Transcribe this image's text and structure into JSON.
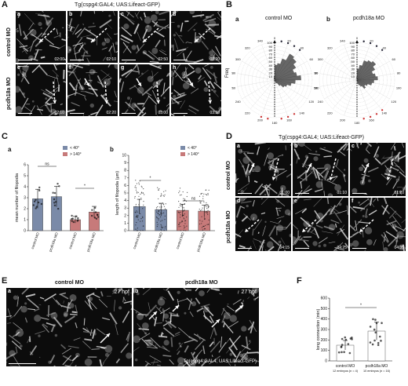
{
  "panelA": {
    "letter": "A",
    "title": "Tg(cspg4:GAL4; UAS:Lifeact-GFP)",
    "row1": "control MO",
    "row2": "pcdh18a MO",
    "tiles": [
      {
        "l": "a",
        "t": "02:00"
      },
      {
        "l": "b",
        "t": "02:10"
      },
      {
        "l": "c",
        "t": "02:50"
      },
      {
        "l": "d",
        "t": "03:20"
      },
      {
        "l": "e",
        "t": "02:10"
      },
      {
        "l": "f",
        "t": "02:20"
      },
      {
        "l": "g",
        "t": "03:00"
      },
      {
        "l": "h",
        "t": "03:30"
      }
    ]
  },
  "panelB": {
    "letter": "B",
    "a_label": "a",
    "a_title": "control MO",
    "b_label": "b",
    "b_title": "pcdh18a MO",
    "ylabel": "Freq",
    "rticks": [
      "100",
      "90",
      "80",
      "70",
      "60",
      "50",
      "40",
      "30",
      "20",
      "10"
    ],
    "angles": [
      "0",
      "20",
      "40",
      "60",
      "80",
      "100",
      "120",
      "140",
      "160",
      "180",
      "200",
      "220",
      "240",
      "260",
      "280",
      "300",
      "320",
      "340"
    ]
  },
  "panelC": {
    "letter": "C",
    "a": "a",
    "b": "b",
    "legend": [
      "< 40°",
      "> 140°"
    ],
    "a_ylabel": "mean number of filopodia",
    "b_ylabel": "length of filopodia (μm)",
    "a_yticks": [
      "0",
      "1",
      "2",
      "3",
      "4",
      "5",
      "6"
    ],
    "b_yticks": [
      "0",
      "1",
      "2",
      "3",
      "4",
      "5",
      "6",
      "7",
      "8",
      "9",
      "10"
    ],
    "xcats": [
      "control MO",
      "pcdh18a MO",
      "control MO",
      "pcdh18a MO"
    ],
    "sig_a": [
      "ns",
      "*"
    ],
    "sig_b": [
      "*",
      "ns"
    ]
  },
  "panelD": {
    "letter": "D",
    "title": "Tg(cspg4:GAL4; UAS:Lifeact-GFP)",
    "row1": "control MO",
    "row2": "pcdh18a MO",
    "tiles": [
      {
        "l": "a",
        "t": "01:00"
      },
      {
        "l": "b",
        "t": "01:10"
      },
      {
        "l": "c",
        "t": "01:20"
      },
      {
        "l": "d",
        "t": "04:15"
      },
      {
        "l": "e",
        "t": "04:25"
      },
      {
        "l": "f",
        "t": "04:35"
      }
    ]
  },
  "panelE": {
    "letter": "E",
    "t1": "control MO",
    "t2": "pcdh18a MO",
    "a": "a",
    "b": "b",
    "hpf1": "27 hpf",
    "hpf2": "27 hpf",
    "caption": "Tg(cspg4:GAL4; UAS:Lifeact-GFP)"
  },
  "panelF": {
    "letter": "F",
    "ylabel": "long connection (min)",
    "yticks": [
      "0",
      "100",
      "200",
      "300",
      "400",
      "500",
      "600"
    ],
    "x1": "control MO",
    "x1sub": "12 embryos (n = 4)",
    "x2": "pcdh18a MO",
    "x2sub": "10 embryos (n = 16)",
    "sig": "*"
  },
  "chart_data": [
    {
      "type": "bar",
      "title": "",
      "ylabel": "mean number of filopodia",
      "ylim": [
        0,
        6
      ],
      "categories": [
        "control MO",
        "pcdh18a MO",
        "control MO",
        "pcdh18a MO"
      ],
      "series": [
        {
          "name": "< 40°",
          "values": [
            2.9,
            3.1,
            null,
            null
          ]
        },
        {
          "name": "> 140°",
          "values": [
            null,
            null,
            1.0,
            1.7
          ]
        }
      ]
    },
    {
      "type": "bar",
      "title": "",
      "ylabel": "length of filopodia (μm)",
      "ylim": [
        0,
        10
      ],
      "categories": [
        "control MO",
        "pcdh18a MO",
        "control MO",
        "pcdh18a MO"
      ],
      "series": [
        {
          "name": "< 40°",
          "values": [
            3.2,
            2.8,
            null,
            null
          ]
        },
        {
          "name": "> 140°",
          "values": [
            null,
            null,
            2.7,
            2.6
          ]
        }
      ]
    },
    {
      "type": "bar",
      "title": "",
      "ylabel": "long connection (min)",
      "ylim": [
        0,
        600
      ],
      "categories": [
        "control MO",
        "pcdh18a MO"
      ],
      "values": [
        150,
        285
      ]
    }
  ]
}
